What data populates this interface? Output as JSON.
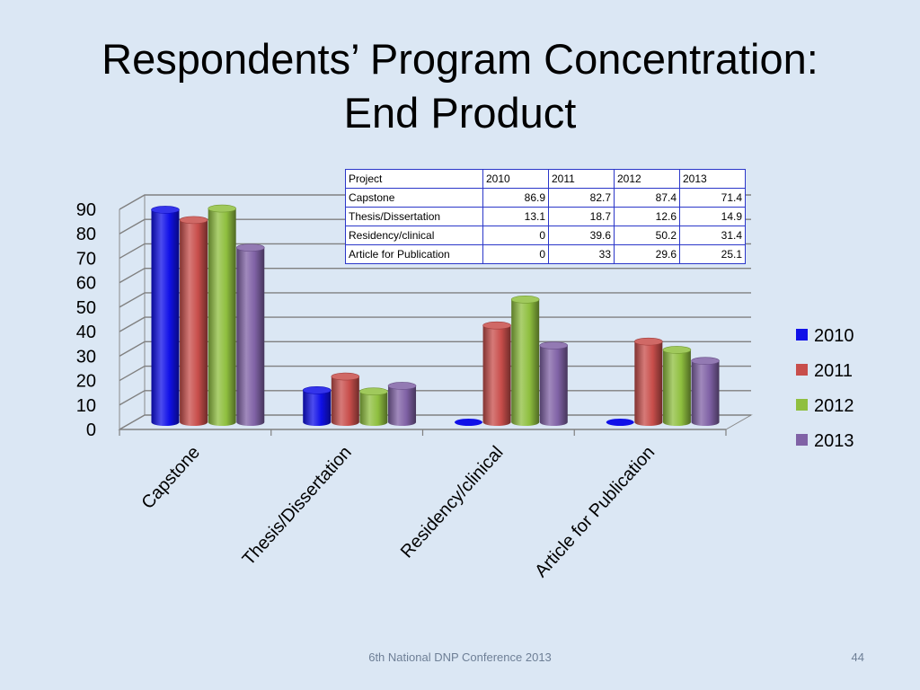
{
  "slide": {
    "title_line1": "Respondents’ Program Concentration:",
    "title_line2": "End Product",
    "footer": "6th National DNP Conference  2013",
    "page_number": "44"
  },
  "table": {
    "header": [
      "Project",
      "2010",
      "2011",
      "2012",
      "2013"
    ],
    "rows": [
      [
        "Capstone",
        "86.9",
        "82.7",
        "87.4",
        "71.4"
      ],
      [
        "Thesis/Dissertation",
        "13.1",
        "18.7",
        "12.6",
        "14.9"
      ],
      [
        "Residency/clinical",
        "0",
        "39.6",
        "50.2",
        "31.4"
      ],
      [
        "Article for Publication",
        "0",
        "33",
        "29.6",
        "25.1"
      ]
    ]
  },
  "chart_data": {
    "type": "bar",
    "categories": [
      "Capstone",
      "Thesis/Dissertation",
      "Residency/clinical",
      "Article for Publication"
    ],
    "series": [
      {
        "name": "2010",
        "values": [
          86.9,
          13.1,
          0,
          0
        ],
        "color": "#1010e8"
      },
      {
        "name": "2011",
        "values": [
          82.7,
          18.7,
          39.6,
          33
        ],
        "color": "#c84e4b"
      },
      {
        "name": "2012",
        "values": [
          87.4,
          12.6,
          50.2,
          29.6
        ],
        "color": "#8fbf3f"
      },
      {
        "name": "2013",
        "values": [
          71.4,
          14.9,
          31.4,
          25.1
        ],
        "color": "#8062a6"
      }
    ],
    "yticks": [
      "0",
      "10",
      "20",
      "30",
      "40",
      "50",
      "60",
      "70",
      "80",
      "90"
    ],
    "ylim": [
      0,
      90
    ],
    "grid": true,
    "legend_position": "right",
    "style": "3d-cylinder"
  }
}
